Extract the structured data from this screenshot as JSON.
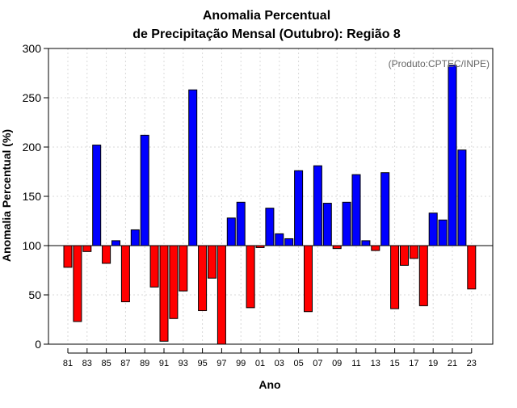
{
  "chart_data": {
    "type": "bar",
    "title_line1": "Anomalia Percentual",
    "title_line2": "de Precipitação Mensal (Outubro): Região 8",
    "xlabel": "Ano",
    "ylabel": "Anomalia Percentual (%)",
    "credit": "(Produto:CPTEC/INPE)",
    "baseline": 100,
    "ylim": [
      0,
      300
    ],
    "yticks": [
      0,
      50,
      100,
      150,
      200,
      250,
      300
    ],
    "years": [
      "81",
      "82",
      "83",
      "84",
      "85",
      "86",
      "87",
      "88",
      "89",
      "90",
      "91",
      "92",
      "93",
      "94",
      "95",
      "96",
      "97",
      "98",
      "99",
      "00",
      "01",
      "02",
      "03",
      "04",
      "05",
      "06",
      "07",
      "08",
      "09",
      "10",
      "11",
      "12",
      "13",
      "14",
      "15",
      "16",
      "17",
      "18",
      "19",
      "20",
      "21",
      "22",
      "23"
    ],
    "xtick_labels": [
      "81",
      "83",
      "85",
      "87",
      "89",
      "91",
      "93",
      "95",
      "97",
      "99",
      "01",
      "03",
      "05",
      "07",
      "09",
      "11",
      "13",
      "15",
      "17",
      "19",
      "21",
      "23"
    ],
    "values": [
      78,
      23,
      94,
      202,
      82,
      105,
      43,
      116,
      212,
      58,
      3,
      26,
      54,
      258,
      34,
      67,
      0,
      128,
      144,
      37,
      98,
      138,
      112,
      107,
      176,
      33,
      181,
      143,
      97,
      144,
      172,
      105,
      95,
      174,
      36,
      80,
      87,
      39,
      133,
      126,
      283,
      197,
      56
    ],
    "colors": {
      "positive": "#0000ff",
      "negative": "#ff0000",
      "outline": "#000000",
      "grid": "#d9d9d9",
      "credit": "#666666"
    }
  }
}
